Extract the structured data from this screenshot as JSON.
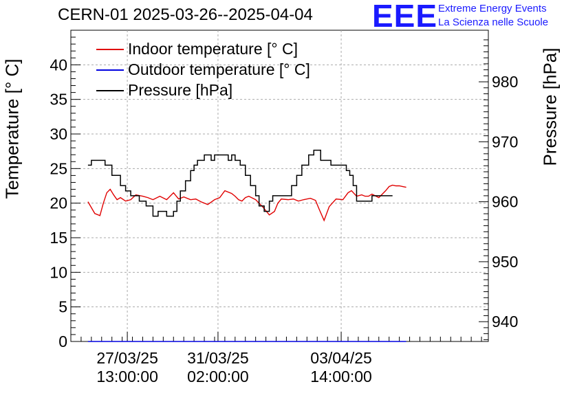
{
  "header": {
    "title": "CERN-01 2025-03-26--2025-04-04",
    "logo": "EEE",
    "brand_line1": "Extreme Energy Events",
    "brand_line2": "La Scienza nelle Scuole"
  },
  "colors": {
    "indoor": "#e00000",
    "outdoor": "#0000e0",
    "pressure": "#000000",
    "brand": "#1a1aff"
  },
  "chart_data": {
    "type": "line",
    "title": "CERN-01 2025-03-26--2025-04-04",
    "xlabel": "",
    "ylabel": "Temperature [° C]",
    "ylabel_right": "Pressure [hPa]",
    "ylim": [
      0,
      45
    ],
    "ylim_right": [
      936.7,
      988.6
    ],
    "yticks": [
      "0",
      "5",
      "10",
      "15",
      "20",
      "25",
      "30",
      "35",
      "40"
    ],
    "yticks_right": [
      "940",
      "950",
      "960",
      "970",
      "980"
    ],
    "xlim_hours": [
      0,
      244
    ],
    "xticks": [
      {
        "hour": 33,
        "date": "27/03/25",
        "time": "13:00:00"
      },
      {
        "hour": 86,
        "date": "31/03/25",
        "time": "02:00:00"
      },
      {
        "hour": 158,
        "date": "03/04/25",
        "time": "14:00:00"
      }
    ],
    "grid": true,
    "legend_position": "top-left",
    "series": [
      {
        "name": "Indoor temperature [° C]",
        "axis": "left",
        "color": "#e00000",
        "x": [
          10,
          14,
          17,
          19,
          21,
          23,
          25,
          27,
          29,
          32,
          35,
          38,
          42,
          45,
          48,
          52,
          56,
          60,
          63,
          66,
          70,
          73,
          76,
          80,
          84,
          87,
          90,
          94,
          96,
          98,
          100,
          102,
          104,
          108,
          112,
          116,
          119,
          121,
          123,
          127,
          130,
          132,
          133,
          136,
          140,
          143,
          145,
          148,
          151,
          155,
          159,
          162,
          164,
          167,
          170,
          172,
          174,
          176,
          180,
          184,
          186,
          188,
          190,
          192,
          194,
          196
        ],
        "values": [
          20.2,
          18.5,
          18.2,
          20.0,
          21.5,
          22.0,
          21.2,
          20.5,
          20.8,
          20.3,
          20.5,
          21.2,
          21.0,
          20.8,
          20.5,
          21.0,
          20.5,
          21.5,
          20.6,
          20.9,
          20.5,
          20.6,
          20.2,
          19.8,
          20.5,
          20.8,
          21.8,
          21.4,
          21.0,
          20.5,
          20.3,
          20.8,
          21.0,
          20.5,
          19.5,
          18.3,
          18.8,
          20.0,
          20.6,
          20.5,
          20.6,
          20.4,
          20.3,
          20.5,
          20.7,
          20.4,
          19.2,
          17.5,
          19.5,
          20.6,
          20.5,
          21.5,
          21.8,
          21.0,
          21.2,
          21.0,
          21.0,
          21.3,
          20.8,
          21.8,
          22.4,
          22.6,
          22.5,
          22.5,
          22.4,
          22.3
        ]
      },
      {
        "name": "Outdoor temperature [° C]",
        "axis": "left",
        "color": "#0000e0",
        "x": [
          10,
          196
        ],
        "values": [
          0,
          0
        ]
      },
      {
        "name": "Pressure [hPa]",
        "axis": "right",
        "color": "#000000",
        "x": [
          10,
          12,
          18,
          20,
          24,
          29,
          32,
          35,
          40,
          44,
          48,
          51,
          56,
          60,
          62,
          64,
          67,
          70,
          72,
          74,
          78,
          82,
          84,
          86,
          88,
          90,
          92,
          94,
          96,
          99,
          102,
          105,
          108,
          110,
          113,
          116,
          118,
          120,
          122,
          126,
          129,
          132,
          135,
          139,
          142,
          146,
          149,
          152,
          154,
          157,
          159,
          161,
          163,
          165,
          167,
          170,
          175,
          176,
          178,
          180,
          182,
          184,
          185,
          188
        ],
        "values": [
          966.1,
          966.9,
          966.9,
          966.1,
          964.4,
          962.7,
          961.8,
          961.0,
          960.1,
          959.3,
          957.6,
          958.4,
          957.6,
          958.4,
          960.1,
          961.8,
          963.5,
          965.2,
          966.1,
          966.9,
          967.8,
          966.9,
          967.8,
          967.8,
          967.8,
          967.8,
          966.9,
          967.8,
          966.9,
          966.1,
          964.4,
          962.7,
          961.0,
          959.3,
          958.4,
          960.1,
          961.0,
          961.0,
          961.0,
          961.0,
          962.7,
          964.4,
          966.1,
          967.8,
          968.6,
          966.9,
          966.9,
          966.1,
          966.1,
          966.1,
          966.1,
          965.2,
          964.4,
          962.7,
          960.1,
          960.1,
          960.1,
          961.0,
          961.0,
          961.0,
          961.0,
          961.0,
          961.0,
          961.0
        ]
      }
    ]
  }
}
